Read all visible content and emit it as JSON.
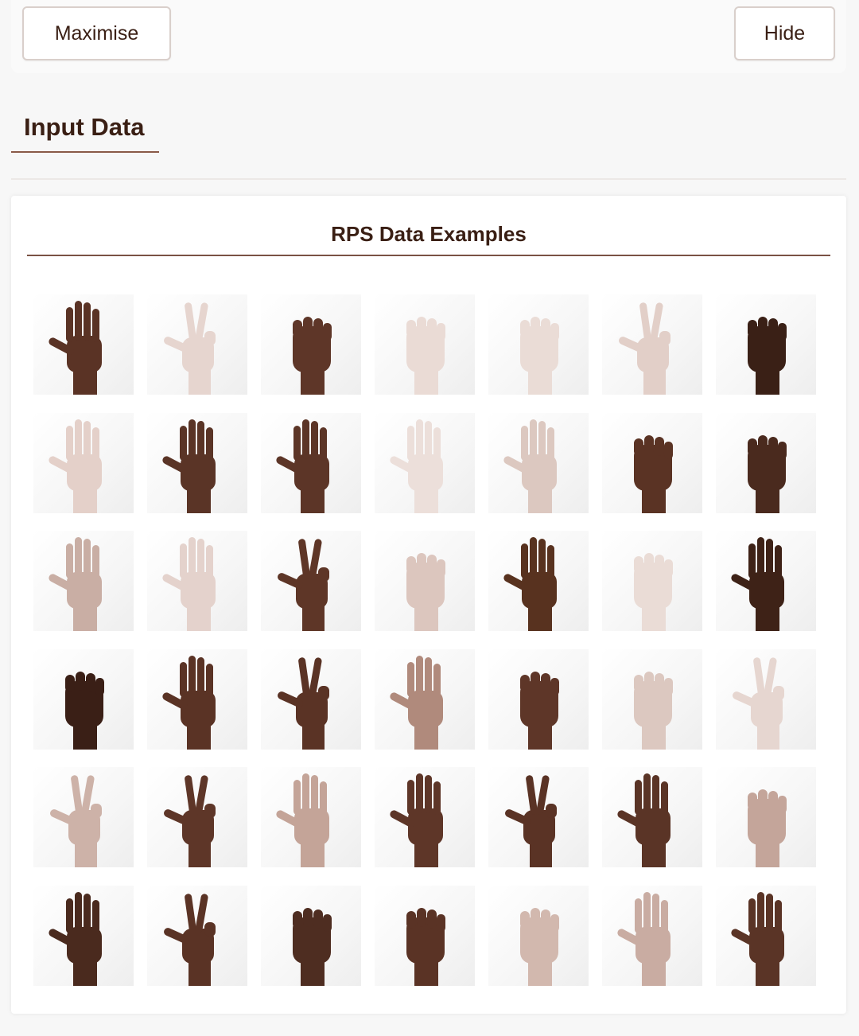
{
  "toolbar": {
    "maximise_label": "Maximise",
    "hide_label": "Hide"
  },
  "tabs": [
    {
      "label": "Input Data"
    }
  ],
  "card": {
    "title": "RPS Data Examples"
  },
  "examples": [
    {
      "gesture": "paper",
      "skin": "#5a3325"
    },
    {
      "gesture": "scissors",
      "skin": "#e6d5cf"
    },
    {
      "gesture": "rock",
      "skin": "#5e3628"
    },
    {
      "gesture": "rock",
      "skin": "#eadbd5"
    },
    {
      "gesture": "rock",
      "skin": "#eadcd6"
    },
    {
      "gesture": "scissors",
      "skin": "#e2cfc8"
    },
    {
      "gesture": "rock",
      "skin": "#3a2016"
    },
    {
      "gesture": "paper",
      "skin": "#e4d0c9"
    },
    {
      "gesture": "paper",
      "skin": "#5a3426"
    },
    {
      "gesture": "paper",
      "skin": "#5c3527"
    },
    {
      "gesture": "paper",
      "skin": "#ecdfda"
    },
    {
      "gesture": "paper",
      "skin": "#dcc8c0"
    },
    {
      "gesture": "rock",
      "skin": "#5a3324"
    },
    {
      "gesture": "rock",
      "skin": "#4a2a1e"
    },
    {
      "gesture": "paper",
      "skin": "#c9aea4"
    },
    {
      "gesture": "paper",
      "skin": "#e4d2cc"
    },
    {
      "gesture": "scissors",
      "skin": "#5e3627"
    },
    {
      "gesture": "rock",
      "skin": "#dcc6be"
    },
    {
      "gesture": "paper",
      "skin": "#58321f"
    },
    {
      "gesture": "rock",
      "skin": "#eadcd6"
    },
    {
      "gesture": "paper",
      "skin": "#3e2217"
    },
    {
      "gesture": "rock",
      "skin": "#3a1f16"
    },
    {
      "gesture": "paper",
      "skin": "#5a3325"
    },
    {
      "gesture": "scissors",
      "skin": "#5a3325"
    },
    {
      "gesture": "paper",
      "skin": "#b08a7c"
    },
    {
      "gesture": "rock",
      "skin": "#5e3628"
    },
    {
      "gesture": "rock",
      "skin": "#dcc8c0"
    },
    {
      "gesture": "scissors",
      "skin": "#e6d6d0"
    },
    {
      "gesture": "scissors",
      "skin": "#cdb2a8"
    },
    {
      "gesture": "scissors",
      "skin": "#5e3628"
    },
    {
      "gesture": "paper",
      "skin": "#c4a498"
    },
    {
      "gesture": "paper",
      "skin": "#5e3628"
    },
    {
      "gesture": "scissors",
      "skin": "#5a3325"
    },
    {
      "gesture": "paper",
      "skin": "#5a3426"
    },
    {
      "gesture": "rock",
      "skin": "#c4a59a"
    },
    {
      "gesture": "paper",
      "skin": "#4a2a1e"
    },
    {
      "gesture": "scissors",
      "skin": "#5a3325"
    },
    {
      "gesture": "rock",
      "skin": "#4e2d21"
    },
    {
      "gesture": "rock",
      "skin": "#5a3325"
    },
    {
      "gesture": "rock",
      "skin": "#d2b8ae"
    },
    {
      "gesture": "paper",
      "skin": "#c9aca2"
    },
    {
      "gesture": "paper",
      "skin": "#5a3426"
    }
  ]
}
